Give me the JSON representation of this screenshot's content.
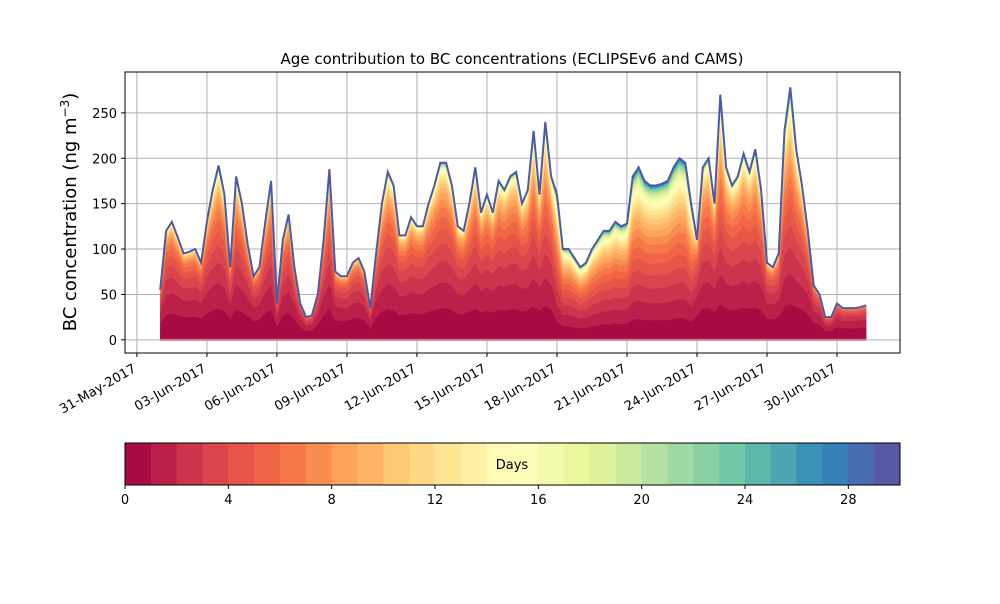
{
  "chart_data": {
    "type": "area",
    "stacked": true,
    "title": "Age contribution to BC concentrations (ECLIPSEv6 and CAMS)",
    "ylabel": "BC concentration (ng m",
    "ylabel_sup": "−3",
    "ylabel_close": ")",
    "xlabel": "",
    "ylim": [
      -14.5,
      295
    ],
    "yticks": [
      0,
      50,
      100,
      150,
      200,
      250
    ],
    "x_start_offset_days": -0.51,
    "x_end_offset_days": 32.7,
    "xtick_labels": [
      "31-May-2017",
      "03-Jun-2017",
      "06-Jun-2017",
      "09-Jun-2017",
      "12-Jun-2017",
      "15-Jun-2017",
      "18-Jun-2017",
      "21-Jun-2017",
      "24-Jun-2017",
      "27-Jun-2017",
      "30-Jun-2017"
    ],
    "xtick_step_days": 3,
    "grid": true,
    "series_x_start_day": 1.0,
    "series_x_step_day": 0.25,
    "total_concentration": [
      55,
      120,
      130,
      113,
      95,
      97,
      100,
      85,
      130,
      165,
      192,
      160,
      80,
      180,
      150,
      105,
      70,
      80,
      130,
      175,
      40,
      110,
      138,
      80,
      40,
      25,
      27,
      50,
      110,
      188,
      75,
      70,
      70,
      85,
      90,
      75,
      35,
      95,
      150,
      185,
      170,
      115,
      115,
      135,
      125,
      125,
      150,
      170,
      195,
      195,
      170,
      125,
      120,
      150,
      190,
      140,
      160,
      140,
      175,
      165,
      180,
      185,
      150,
      165,
      230,
      160,
      240,
      180,
      160,
      100,
      100,
      90,
      80,
      85,
      100,
      110,
      120,
      120,
      130,
      125,
      128,
      180,
      190,
      175,
      170,
      170,
      172,
      175,
      190,
      200,
      195,
      150,
      110,
      190,
      200,
      150,
      270,
      190,
      170,
      180,
      205,
      185,
      210,
      165,
      85,
      80,
      95,
      230,
      278,
      210,
      170,
      120,
      60,
      50,
      25,
      25,
      40,
      35,
      35,
      35,
      36,
      38
    ],
    "age_bins_days": 30,
    "colorbar": {
      "label": "Days",
      "ticks": [
        "0",
        "4",
        "8",
        "12",
        "16",
        "20",
        "24",
        "28"
      ],
      "range": [
        0,
        30
      ],
      "colormap": "Spectral"
    }
  }
}
